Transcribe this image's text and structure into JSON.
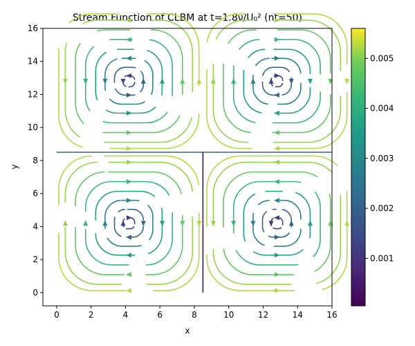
{
  "chart_data": {
    "type": "streamplot",
    "title": "Stream Function of CLBM at t=1.8ν/U₀² (nt=50)",
    "xlabel": "x",
    "ylabel": "y",
    "xlim": [
      -0.8,
      16
    ],
    "ylim": [
      -0.8,
      16
    ],
    "xticks": [
      0,
      2,
      4,
      6,
      8,
      10,
      12,
      14,
      16
    ],
    "yticks": [
      0,
      2,
      4,
      6,
      8,
      10,
      12,
      14,
      16
    ],
    "colorbar": {
      "ticks": [
        0.001,
        0.002,
        0.003,
        0.004,
        0.005
      ],
      "tick_labels": [
        "0.001",
        "0.002",
        "0.003",
        "0.004",
        "0.005"
      ],
      "range": [
        5e-05,
        0.0056
      ],
      "colormap": "viridis"
    },
    "vortices": [
      {
        "center": [
          4.2,
          12.8
        ],
        "half": 4.2,
        "rotation": "ccw"
      },
      {
        "center": [
          12.8,
          12.8
        ],
        "half": 4.2,
        "rotation": "cw"
      },
      {
        "center": [
          4.2,
          4.2
        ],
        "half": 4.2,
        "rotation": "cw"
      },
      {
        "center": [
          12.8,
          4.2
        ],
        "half": 4.2,
        "rotation": "ccw"
      }
    ],
    "separatrices": [
      {
        "from": [
          0,
          8.5
        ],
        "to": [
          16,
          8.5
        ]
      },
      {
        "from": [
          8.5,
          0
        ],
        "to": [
          8.5,
          8.5
        ]
      }
    ],
    "grid": false
  }
}
